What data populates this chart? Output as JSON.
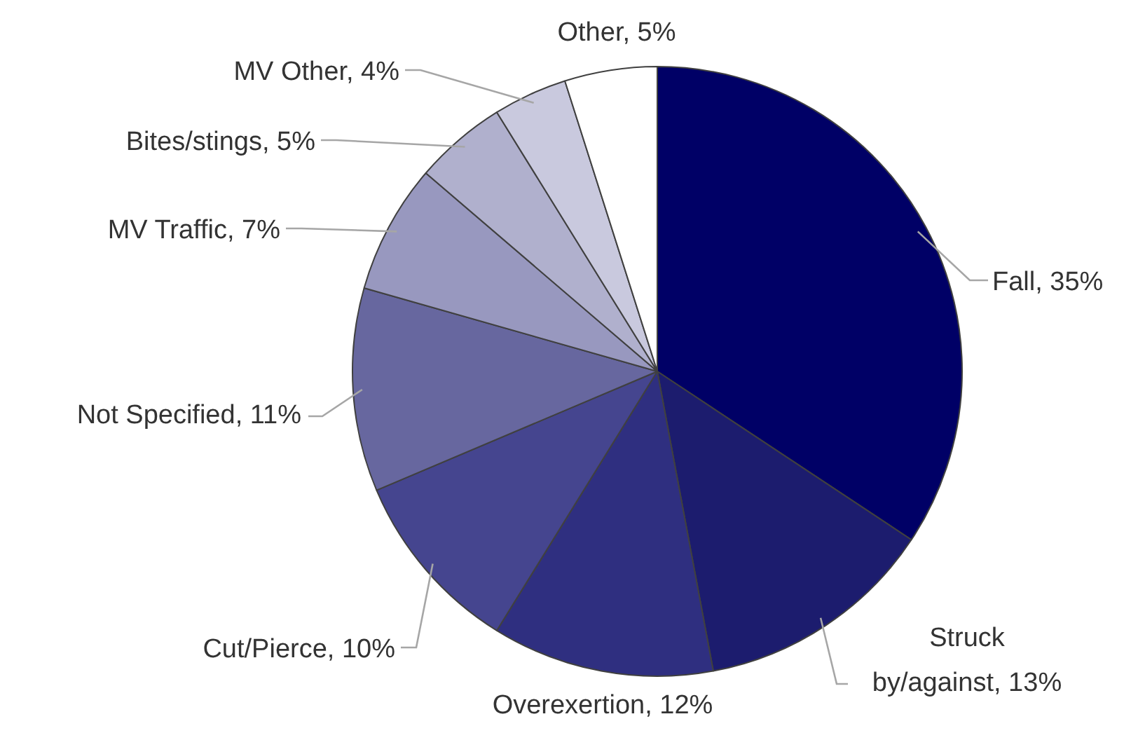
{
  "chart_data": {
    "type": "pie",
    "categories": [
      "Fall",
      "Struck by/against",
      "Overexertion",
      "Cut/Pierce",
      "Not Specified",
      "MV Traffic",
      "Bites/stings",
      "MV Other",
      "Other"
    ],
    "values": [
      35,
      13,
      12,
      10,
      11,
      7,
      5,
      4,
      5
    ],
    "value_labels": [
      "35%",
      "13%",
      "12%",
      "10%",
      "11%",
      "7%",
      "5%",
      "4%",
      "5%"
    ],
    "colors": [
      "#000066",
      "#1c1c6e",
      "#2f2f80",
      "#45458f",
      "#67679f",
      "#9898bf",
      "#b0b0cd",
      "#c9c9de",
      "#ffffff"
    ],
    "legend": false
  }
}
